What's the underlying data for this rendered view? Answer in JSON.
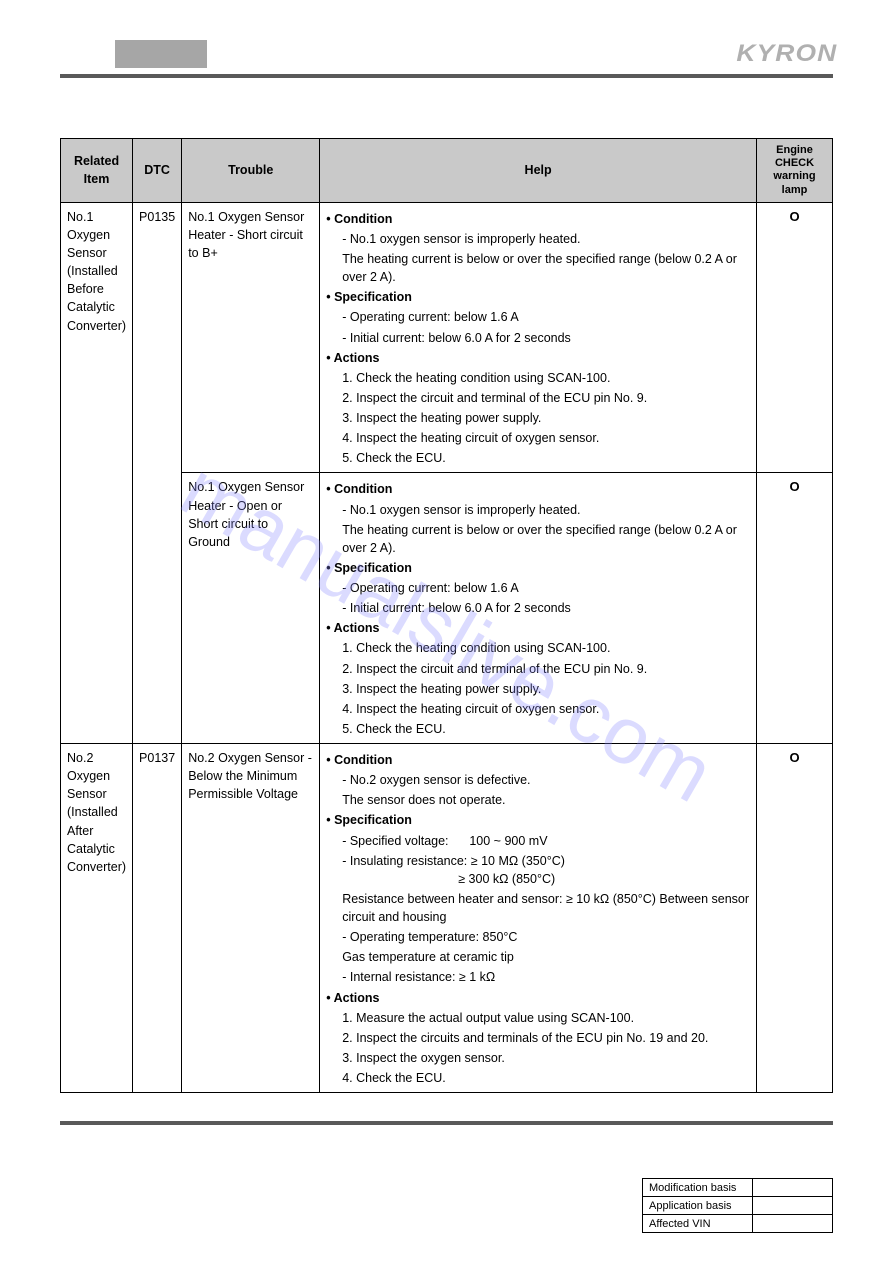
{
  "brand": "KYRON",
  "watermark": "manualslive.com",
  "table": {
    "headers": {
      "item": "Related Item",
      "dtc": "DTC",
      "trouble": "Trouble",
      "help": "Help",
      "lamp": "Engine CHECK warning lamp"
    },
    "rows": [
      {
        "item": "No.1 Oxygen Sensor (Installed Before Catalytic Converter)",
        "dtc": "P0135",
        "troubles": [
          {
            "trouble": "No.1 Oxygen Sensor Heater - Short circuit to B+",
            "help": {
              "condition_label": "Condition",
              "conditions": [
                "No.1 oxygen sensor is improperly heated.",
                "The heating current is below or over the specified range (below 0.2 A or over 2 A)."
              ],
              "spec_label": "Specification",
              "specs": [
                "Operating current: below 1.6 A",
                "Initial current: below 6.0 A for 2 seconds"
              ],
              "actions_label": "Actions",
              "actions": [
                "1. Check the heating condition using SCAN-100.",
                "2. Inspect the circuit and terminal of the ECU pin No. 9.",
                "3. Inspect the heating power supply.",
                "4. Inspect the heating circuit of oxygen sensor.",
                "5. Check the ECU."
              ]
            },
            "lamp": "O"
          },
          {
            "trouble": "No.1 Oxygen Sensor Heater - Open or Short circuit to Ground",
            "help": {
              "condition_label": "Condition",
              "conditions": [
                "No.1 oxygen sensor is improperly heated.",
                "The heating current is below or over the specified range (below 0.2 A or over 2 A)."
              ],
              "spec_label": "Specification",
              "specs": [
                "Operating current: below 1.6 A",
                "Initial current: below 6.0 A for 2 seconds"
              ],
              "actions_label": "Actions",
              "actions": [
                "1. Check the heating condition using SCAN-100.",
                "2. Inspect the circuit and terminal of the ECU pin No. 9.",
                "3. Inspect the heating power supply.",
                "4. Inspect the heating circuit of oxygen sensor.",
                "5. Check the ECU."
              ]
            },
            "lamp": "O"
          }
        ]
      },
      {
        "item": "No.2 Oxygen Sensor (Installed After Catalytic Converter)",
        "dtc": "P0137",
        "troubles": [
          {
            "trouble": "No.2 Oxygen Sensor - Below the Minimum Permissible Voltage",
            "help": {
              "condition_label": "Condition",
              "conditions": [
                "No.2 oxygen sensor is defective.",
                "The sensor does not operate."
              ],
              "spec_label": "Specification",
              "specs2": [
                "Specified voltage:      100 ~ 900 mV",
                "Insulating resistance: ≥  10 MΩ (350°C)",
                "≥ 300 kΩ (850°C)",
                "Resistance between heater and sensor: ≥  10 kΩ (850°C) Between sensor circuit and housing",
                "Operating temperature: 850°C",
                "Gas temperature at ceramic tip",
                "Internal resistance: ≥ 1 kΩ"
              ],
              "actions_label": "Actions",
              "actions": [
                "1. Measure the actual output value using SCAN-100.",
                "2. Inspect the circuits and terminals of the ECU pin No. 19 and 20.",
                "3. Inspect the oxygen sensor.",
                "4. Check the ECU."
              ]
            },
            "lamp": "O"
          }
        ]
      }
    ]
  },
  "footer": {
    "mod": "Modification basis",
    "app": "Application basis",
    "vin": "Affected VIN"
  }
}
